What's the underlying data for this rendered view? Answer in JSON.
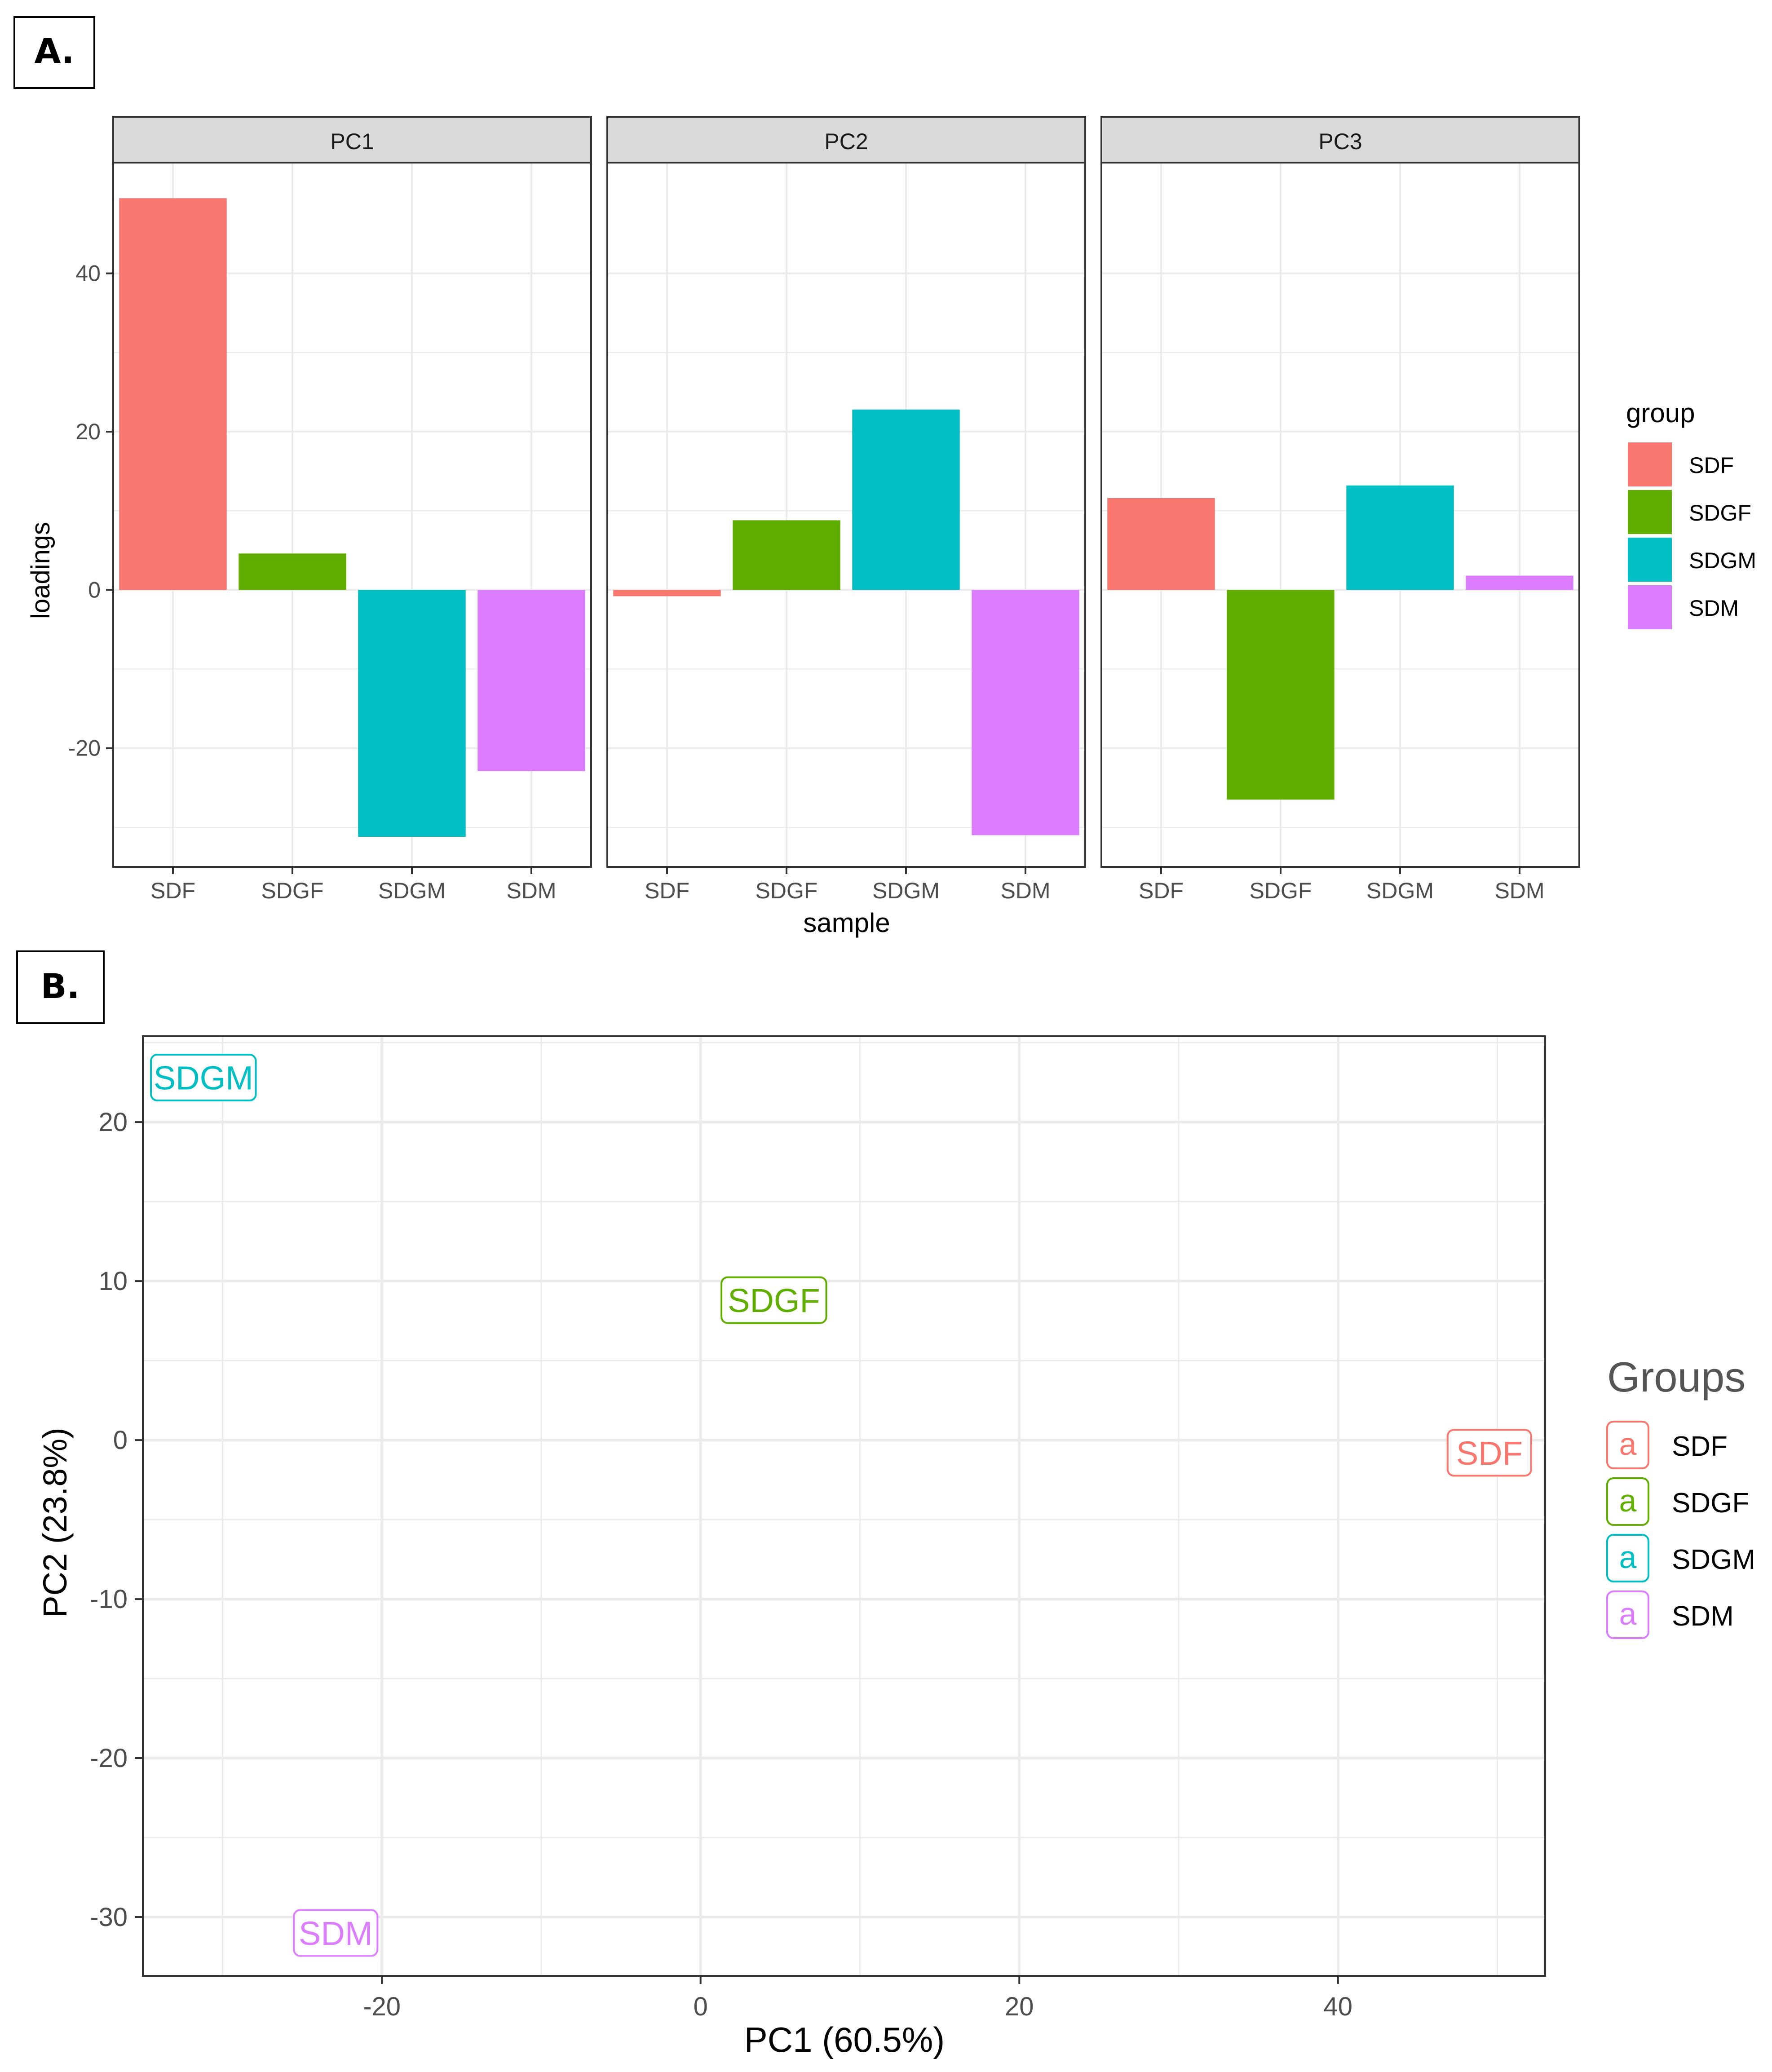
{
  "panels": {
    "a_label": "A.",
    "b_label": "B."
  },
  "colors": {
    "SDF": "#F8766D",
    "SDGF": "#5FAE00",
    "SDGM": "#00BFC4",
    "SDM": "#DC7CFF",
    "grid": "#ebebeb",
    "strip_fill": "#d9d9d9",
    "axis_text": "#4d4d4d"
  },
  "chart_data": [
    {
      "type": "bar",
      "panel": "A.",
      "facet_var": "PC",
      "facets": [
        "PC1",
        "PC2",
        "PC3"
      ],
      "categories": [
        "SDF",
        "SDGF",
        "SDGM",
        "SDM"
      ],
      "series": [
        {
          "facet": "PC1",
          "values": [
            49.5,
            4.6,
            -31.2,
            -22.9
          ]
        },
        {
          "facet": "PC2",
          "values": [
            -0.8,
            8.8,
            22.8,
            -31.0
          ]
        },
        {
          "facet": "PC3",
          "values": [
            11.6,
            -26.5,
            13.2,
            1.8
          ]
        }
      ],
      "xlabel": "sample",
      "ylabel": "loadings",
      "ylim": [
        -35,
        54
      ],
      "yticks": [
        -20,
        0,
        20,
        40
      ],
      "grid": true,
      "legend": {
        "title": "group",
        "position": "right",
        "entries": [
          "SDF",
          "SDGF",
          "SDGM",
          "SDM"
        ]
      }
    },
    {
      "type": "scatter",
      "panel": "B.",
      "points": [
        {
          "label": "SDF",
          "x": 49.5,
          "y": -0.8
        },
        {
          "label": "SDGF",
          "x": 4.6,
          "y": 8.8
        },
        {
          "label": "SDGM",
          "x": -31.2,
          "y": 22.8
        },
        {
          "label": "SDM",
          "x": -22.9,
          "y": -31.0
        }
      ],
      "xlabel": "PC1 (60.5%)",
      "ylabel": "PC2 (23.8%)",
      "xlim": [
        -35,
        53
      ],
      "ylim": [
        -33.7,
        25.4
      ],
      "xticks": [
        -20,
        0,
        20,
        40
      ],
      "yticks": [
        -30,
        -20,
        -10,
        0,
        10,
        20
      ],
      "grid": true,
      "legend": {
        "title": "Groups",
        "position": "right",
        "key_glyph": "a",
        "entries": [
          "SDF",
          "SDGF",
          "SDGM",
          "SDM"
        ]
      }
    }
  ]
}
